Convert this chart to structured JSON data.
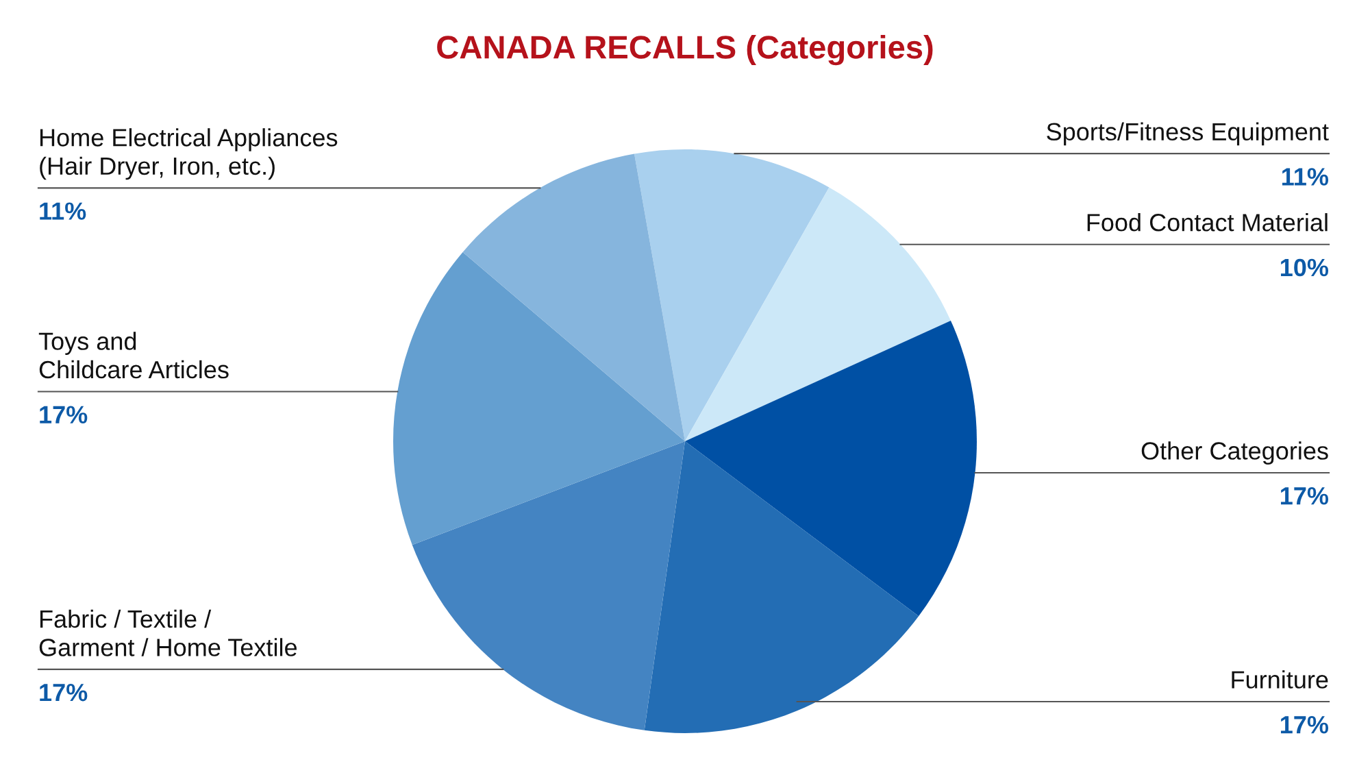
{
  "chart_data": {
    "type": "pie",
    "title": "CANADA RECALLS (Categories)",
    "categories": [
      "Sports/Fitness Equipment",
      "Food Contact Material",
      "Other Categories",
      "Furniture",
      "Fabric / Textile /\nGarment / Home Textile",
      "Toys and\nChildcare Articles",
      "Home Electrical Appliances\n(Hair Dryer, Iron, etc.)"
    ],
    "values": [
      11,
      10,
      17,
      17,
      17,
      17,
      11
    ],
    "value_labels": [
      "11%",
      "10%",
      "17%",
      "17%",
      "17%",
      "17%",
      "11%"
    ],
    "colors": [
      "#a9d0ee",
      "#cce8f8",
      "#0050a4",
      "#236db4",
      "#4484c2",
      "#649fd0",
      "#86b5dd"
    ],
    "legend": false
  }
}
